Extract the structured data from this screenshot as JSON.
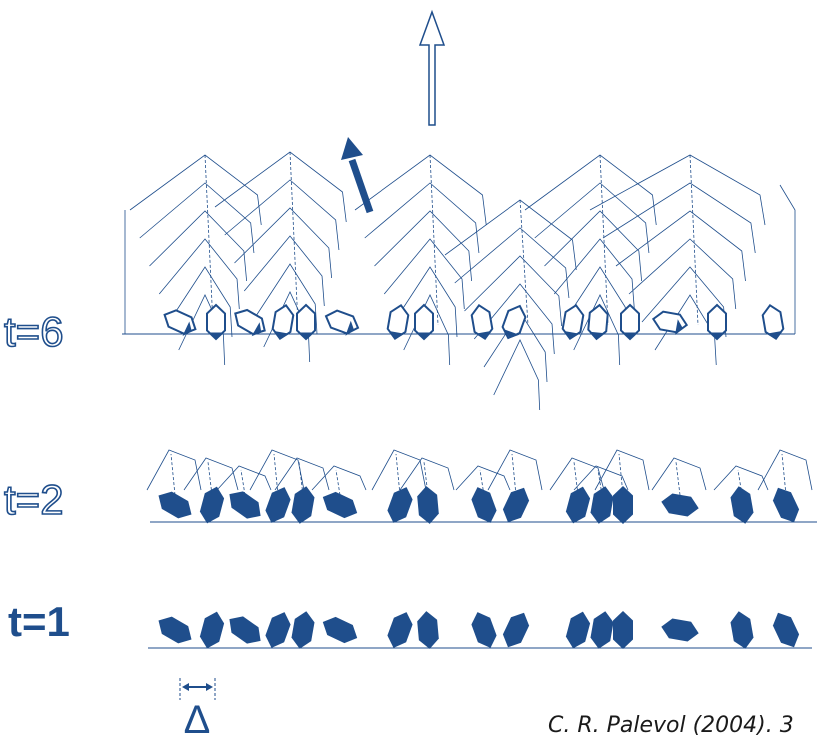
{
  "labels": {
    "t6": "t=6",
    "t2": "t=2",
    "t1": "t=1",
    "delta": "Δ"
  },
  "citation": "C. R. Palevol (2004). 3"
}
